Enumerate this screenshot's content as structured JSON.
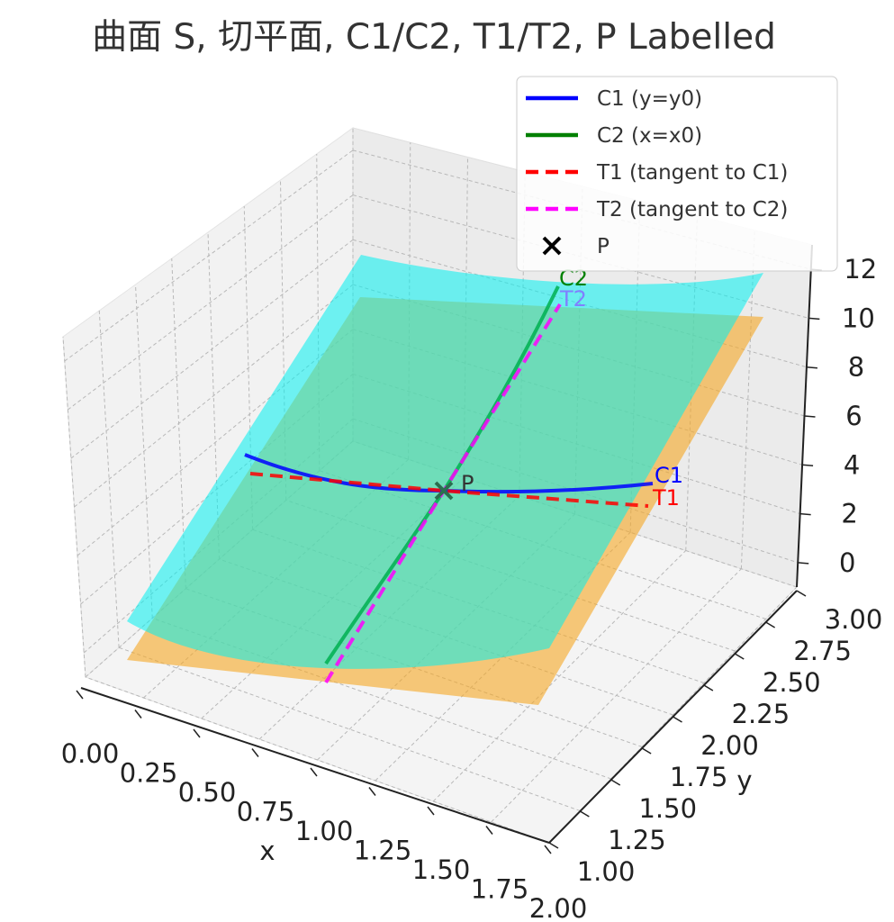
{
  "chart_data": {
    "type": "surface3d",
    "title": "曲面 S, 切平面, C1/C2, T1/T2, P Labelled",
    "xlabel": "x",
    "ylabel": "y",
    "zlabel": "",
    "xlim": [
      0,
      2
    ],
    "ylim": [
      1,
      3
    ],
    "zlim": [
      -1,
      13
    ],
    "x_ticks": [
      "0.00",
      "0.25",
      "0.50",
      "0.75",
      "1.00",
      "1.25",
      "1.50",
      "1.75",
      "2.00"
    ],
    "y_ticks": [
      "1.00",
      "1.25",
      "1.50",
      "1.75",
      "2.00",
      "2.25",
      "2.50",
      "2.75",
      "3.00"
    ],
    "z_ticks": [
      "0",
      "2",
      "4",
      "6",
      "8",
      "10",
      "12"
    ],
    "grid": true,
    "legend_position": "top-right",
    "point_P": {
      "x": 1.0,
      "y": 2.0,
      "z": 5.0
    },
    "surfaces": [
      {
        "role": "surface S",
        "color": "#00f0f0",
        "opacity": 0.55
      },
      {
        "role": "tangent plane",
        "color": "#f5a623",
        "opacity": 0.6
      }
    ],
    "series": [
      {
        "name": "C1 (y=y0)",
        "color": "#0000ff",
        "style": "solid"
      },
      {
        "name": "C2 (x=x0)",
        "color": "#008000",
        "style": "solid"
      },
      {
        "name": "T1 (tangent to C1)",
        "color": "#ff0000",
        "style": "dashed"
      },
      {
        "name": "T2 (tangent to C2)",
        "color": "#ff00ff",
        "style": "dashed"
      },
      {
        "name": "P",
        "color": "#000000",
        "style": "marker-x"
      }
    ],
    "annotations": [
      "C1",
      "C2",
      "T1",
      "T2",
      "P"
    ]
  }
}
